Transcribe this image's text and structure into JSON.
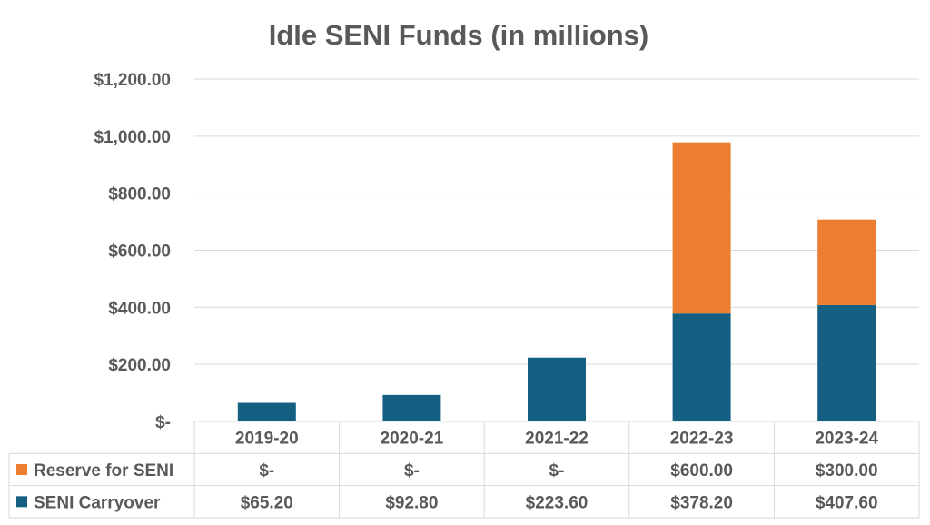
{
  "colors": {
    "reserve": "#ED7D31",
    "carryover": "#156082",
    "text": "#595959",
    "grid": "#D9D9D9"
  },
  "chart_data": {
    "type": "bar",
    "stacked": true,
    "title": "Idle SENI Funds (in millions)",
    "categories": [
      "2019-20",
      "2020-21",
      "2021-22",
      "2022-23",
      "2023-24"
    ],
    "series": [
      {
        "name": "SENI Carryover",
        "values": [
          65.2,
          92.8,
          223.6,
          378.2,
          407.6
        ],
        "labels": [
          "$65.20",
          "$92.80",
          "$223.60",
          "$378.20",
          "$407.60"
        ],
        "color": "#156082"
      },
      {
        "name": "Reserve for SENI",
        "values": [
          0,
          0,
          0,
          600.0,
          300.0
        ],
        "labels": [
          "$-",
          "$-",
          "$-",
          "$600.00",
          "$300.00"
        ],
        "color": "#ED7D31"
      }
    ],
    "ylim": [
      0,
      1200
    ],
    "yticks": [
      0,
      200,
      400,
      600,
      800,
      1000,
      1200
    ],
    "ytick_labels": [
      "$-",
      "$200.00",
      "$400.00",
      "$600.00",
      "$800.00",
      "$1,000.00",
      "$1,200.00"
    ],
    "grid": true,
    "legend": "data-table"
  }
}
